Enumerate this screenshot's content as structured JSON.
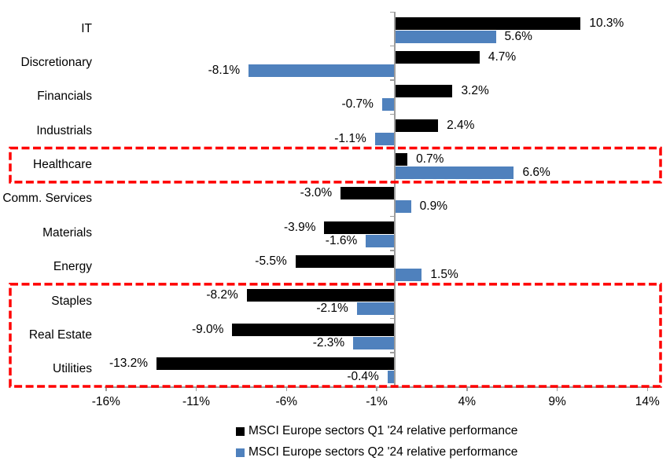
{
  "chart_data": {
    "type": "bar",
    "orientation": "horizontal",
    "title": "",
    "categories": [
      "IT",
      "Discretionary",
      "Financials",
      "Industrials",
      "Healthcare",
      "Comm. Services",
      "Materials",
      "Energy",
      "Staples",
      "Real Estate",
      "Utilities"
    ],
    "series": [
      {
        "name": "MSCI Europe sectors Q1 '24 relative performance",
        "color": "#000000",
        "values": [
          10.3,
          4.7,
          3.2,
          2.4,
          0.7,
          -3.0,
          -3.9,
          -5.5,
          -8.2,
          -9.0,
          -13.2
        ],
        "labels": [
          "10.3%",
          "4.7%",
          "3.2%",
          "2.4%",
          "0.7%",
          "-3.0%",
          "-3.9%",
          "-5.5%",
          "-8.2%",
          "-9.0%",
          "-13.2%"
        ]
      },
      {
        "name": "MSCI Europe sectors Q2 '24 relative performance",
        "color": "#4F81BD",
        "values": [
          5.6,
          -8.1,
          -0.7,
          -1.1,
          6.6,
          0.9,
          -1.6,
          1.5,
          -2.1,
          -2.3,
          -0.4
        ],
        "labels": [
          "5.6%",
          "-8.1%",
          "-0.7%",
          "-1.1%",
          "6.6%",
          "0.9%",
          "-1.6%",
          "1.5%",
          "-2.1%",
          "-2.3%",
          "-0.4%"
        ]
      }
    ],
    "x_axis": {
      "ticks": [
        {
          "label": "-16%",
          "value": -16
        },
        {
          "label": "-11%",
          "value": -11
        },
        {
          "label": "-6%",
          "value": -6
        },
        {
          "label": "-1%",
          "value": -1
        },
        {
          "label": "4%",
          "value": 4
        },
        {
          "label": "9%",
          "value": 9
        },
        {
          "label": "14%",
          "value": 14
        }
      ],
      "range": [
        -16,
        14
      ]
    },
    "grid": false,
    "legend_position": "bottom",
    "axis_color": "#9d9d9d",
    "highlight_color": "#FF0000",
    "highlight_boxes": [
      {
        "category_start": "Healthcare",
        "category_end": "Healthcare"
      },
      {
        "category_start": "Staples",
        "category_end": "Utilities"
      }
    ]
  }
}
